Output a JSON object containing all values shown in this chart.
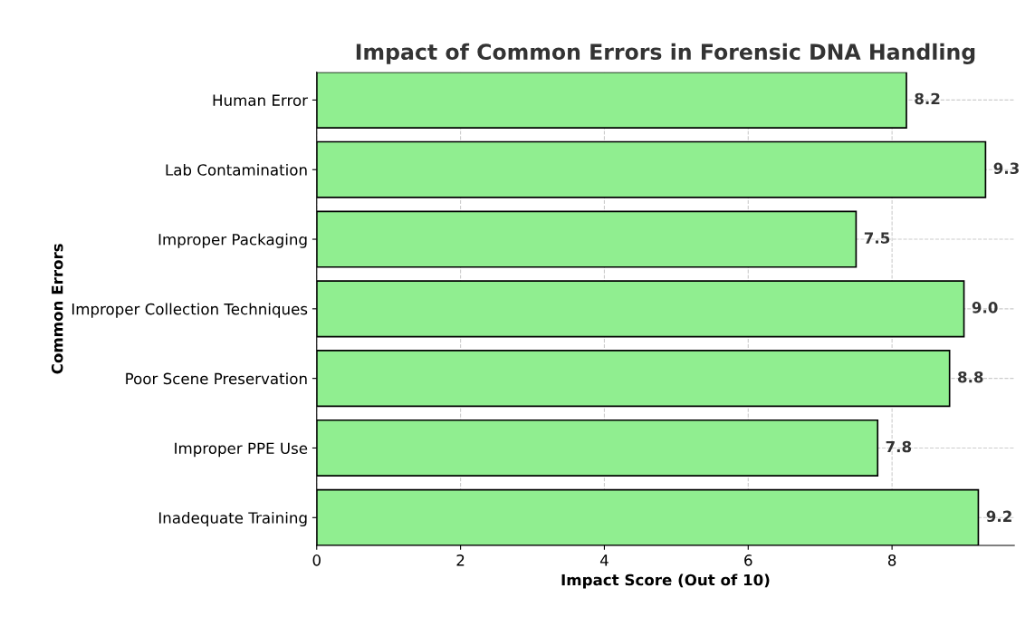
{
  "chart_data": {
    "type": "bar",
    "orientation": "horizontal",
    "title": "Impact of Common Errors in Forensic DNA Handling",
    "xlabel": "Impact Score (Out of 10)",
    "ylabel": "Common Errors",
    "categories": [
      "Human Error",
      "Lab Contamination",
      "Improper Packaging",
      "Improper Collection Techniques",
      "Poor Scene Preservation",
      "Improper PPE Use",
      "Inadequate Training"
    ],
    "values": [
      8.2,
      9.3,
      7.5,
      9.0,
      8.8,
      7.8,
      9.2
    ],
    "value_labels": [
      "8.2",
      "9.3",
      "7.5",
      "9.0",
      "8.8",
      "7.8",
      "9.2"
    ],
    "color": "#90ee90",
    "xlim": [
      0,
      9.7
    ],
    "xticks": [
      0,
      2,
      4,
      6,
      8
    ],
    "grid": true
  }
}
